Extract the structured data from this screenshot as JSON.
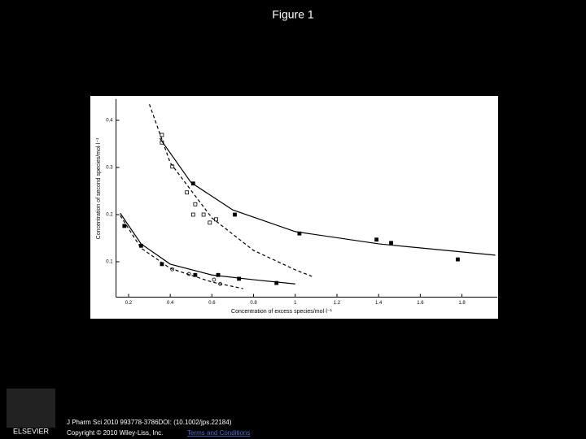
{
  "slide": {
    "title": "Figure 1",
    "citation": "J Pharm Sci 2010 993778-3786DOI: (10.1002/jps.22184)",
    "copyright": "Copyright © 2010 Wiley-Liss, Inc.",
    "link": "Terms and Conditions",
    "logo": "ELSEVIER"
  },
  "chart_data": {
    "type": "scatter",
    "x_label": "Concentration of excess species/mol·l⁻¹",
    "y_label": "Concentration of second species/mol·l⁻¹",
    "xlim": [
      0.14,
      1.97
    ],
    "ylim": [
      0.025,
      0.445
    ],
    "xticks": [
      0.2,
      0.4,
      0.6,
      0.8,
      1,
      1.2,
      1.4,
      1.6,
      1.8
    ],
    "yticks": [
      0.1,
      0.2,
      0.3,
      0.4
    ],
    "series": [
      {
        "mode": "markers",
        "marker": "filled-square",
        "color": "#000000",
        "x": [
          0.51,
          0.71,
          1.02,
          1.39,
          1.46,
          1.78
        ],
        "values": [
          0.266,
          0.2,
          0.16,
          0.147,
          0.14,
          0.105
        ]
      },
      {
        "mode": "markers",
        "marker": "open-square",
        "color": "#000000",
        "x": [
          0.36,
          0.36,
          0.41,
          0.48,
          0.52,
          0.51,
          0.56,
          0.59,
          0.62
        ],
        "values": [
          0.369,
          0.353,
          0.302,
          0.247,
          0.222,
          0.2,
          0.2,
          0.183,
          0.19
        ]
      },
      {
        "mode": "markers",
        "marker": "filled-square",
        "color": "#000000",
        "x": [
          0.18,
          0.26,
          0.36,
          0.52,
          0.63,
          0.73,
          0.91
        ],
        "values": [
          0.176,
          0.134,
          0.095,
          0.072,
          0.072,
          0.064,
          0.055
        ]
      },
      {
        "mode": "markers",
        "marker": "open-circle",
        "color": "#000000",
        "x": [
          0.41,
          0.49,
          0.61,
          0.64
        ],
        "values": [
          0.084,
          0.074,
          0.062,
          0.053
        ]
      },
      {
        "mode": "line",
        "dash": false,
        "color": "#000000",
        "x": [
          0.35,
          0.5,
          0.7,
          1.0,
          1.4,
          1.96
        ],
        "values": [
          0.362,
          0.268,
          0.21,
          0.164,
          0.138,
          0.114
        ]
      },
      {
        "mode": "line",
        "dash": true,
        "color": "#000000",
        "x": [
          0.3,
          0.4,
          0.6,
          0.8,
          1.0,
          1.08
        ],
        "values": [
          0.434,
          0.31,
          0.193,
          0.124,
          0.083,
          0.069
        ]
      },
      {
        "mode": "line",
        "dash": false,
        "color": "#000000",
        "x": [
          0.16,
          0.26,
          0.4,
          0.6,
          0.8,
          1.0
        ],
        "values": [
          0.203,
          0.138,
          0.095,
          0.072,
          0.062,
          0.053
        ]
      },
      {
        "mode": "line",
        "dash": true,
        "color": "#000000",
        "x": [
          0.16,
          0.26,
          0.4,
          0.6,
          0.75
        ],
        "values": [
          0.198,
          0.129,
          0.086,
          0.057,
          0.043
        ]
      }
    ]
  }
}
